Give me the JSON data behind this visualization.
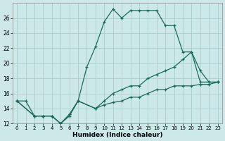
{
  "xlabel": "Humidex (Indice chaleur)",
  "ylabel": "",
  "bg_color": "#cce8e8",
  "grid_color": "#aacece",
  "line_color": "#1a6b5a",
  "xlim": [
    -0.5,
    23.5
  ],
  "ylim": [
    12,
    28
  ],
  "yticks": [
    12,
    14,
    16,
    18,
    20,
    22,
    24,
    26
  ],
  "xticks": [
    0,
    1,
    2,
    3,
    4,
    5,
    6,
    7,
    8,
    9,
    10,
    11,
    12,
    13,
    14,
    15,
    16,
    17,
    18,
    19,
    20,
    21,
    22,
    23
  ],
  "line1_x": [
    0,
    1,
    2,
    3,
    4,
    5,
    6,
    7,
    8,
    9,
    10,
    11,
    12,
    13,
    14,
    15,
    16,
    17,
    18,
    19,
    20,
    21,
    22,
    23
  ],
  "line1_y": [
    15,
    15,
    13,
    13,
    13,
    12,
    13,
    15,
    19.5,
    22.2,
    25.5,
    27.2,
    26,
    27,
    27,
    27,
    27,
    25,
    25,
    21.5,
    21.5,
    17.5,
    17.5,
    17.5
  ],
  "line2_x": [
    0,
    2,
    3,
    4,
    5,
    6,
    7,
    9,
    10,
    11,
    12,
    13,
    14,
    15,
    16,
    17,
    18,
    19,
    20,
    21,
    22,
    23
  ],
  "line2_y": [
    15,
    13,
    13,
    13,
    12,
    13.2,
    15,
    14,
    15,
    16,
    16.5,
    17,
    17,
    18,
    18.5,
    19,
    19.5,
    20.5,
    21.5,
    19,
    17.5,
    17.5
  ],
  "line3_x": [
    0,
    2,
    3,
    4,
    5,
    6,
    7,
    9,
    10,
    11,
    12,
    13,
    14,
    15,
    16,
    17,
    18,
    19,
    20,
    21,
    22,
    23
  ],
  "line3_y": [
    15,
    13,
    13,
    13,
    12,
    13.2,
    15,
    14,
    14.5,
    14.8,
    15,
    15.5,
    15.5,
    16,
    16.5,
    16.5,
    17,
    17,
    17,
    17.2,
    17.2,
    17.5
  ]
}
